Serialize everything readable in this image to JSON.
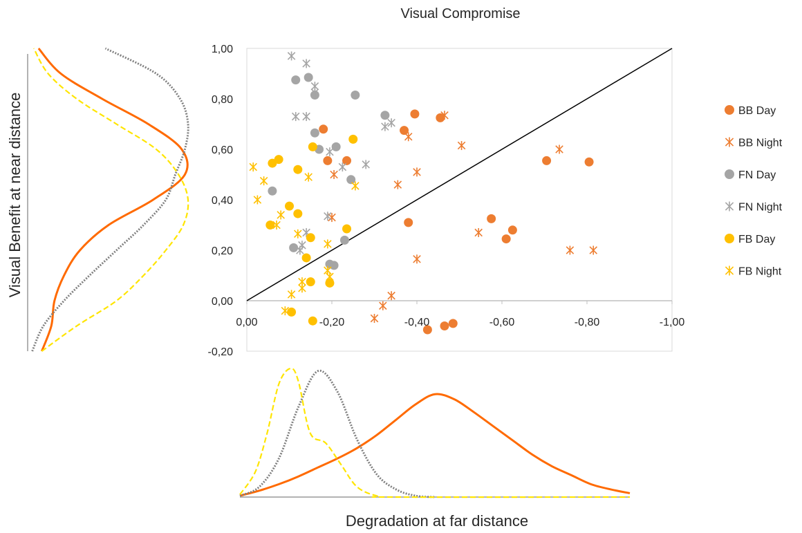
{
  "chart_data": {
    "type": "scatter",
    "title": "Visual Compromise",
    "xlabel": "Degradation at far distance",
    "ylabel": "Visual Benefit at near distance",
    "xlim": [
      0,
      -1
    ],
    "ylim": [
      -0.2,
      1
    ],
    "x_ticks": [
      0,
      -0.2,
      -0.4,
      -0.6,
      -0.8,
      -1
    ],
    "y_ticks": [
      -0.2,
      0,
      0.2,
      0.4,
      0.6,
      0.8,
      1
    ],
    "x_tick_labels": [
      "0,00",
      "-0,20",
      "-0,40",
      "-0,60",
      "-0,80",
      "-1,00"
    ],
    "y_tick_labels": [
      "-0,20",
      "0,00",
      "0,20",
      "0,40",
      "0,60",
      "0,80",
      "1,00"
    ],
    "reference_line": {
      "from": [
        0,
        0
      ],
      "to": [
        -1,
        1
      ],
      "color": "#000000"
    },
    "legend_position": "right",
    "series": [
      {
        "name": "BB Day",
        "marker": "circle",
        "color": "#ED7D31",
        "points": [
          [
            -0.18,
            0.68
          ],
          [
            -0.19,
            0.555
          ],
          [
            -0.235,
            0.555
          ],
          [
            -0.37,
            0.675
          ],
          [
            -0.395,
            0.74
          ],
          [
            -0.455,
            0.725
          ],
          [
            -0.38,
            0.31
          ],
          [
            -0.575,
            0.325
          ],
          [
            -0.61,
            0.245
          ],
          [
            -0.625,
            0.28
          ],
          [
            -0.705,
            0.555
          ],
          [
            -0.805,
            0.55
          ],
          [
            -0.425,
            -0.115
          ],
          [
            -0.465,
            -0.1
          ],
          [
            -0.485,
            -0.09
          ]
        ]
      },
      {
        "name": "BB Night",
        "marker": "asterisk",
        "color": "#ED7D31",
        "points": [
          [
            -0.465,
            0.735
          ],
          [
            -0.38,
            0.65
          ],
          [
            -0.505,
            0.615
          ],
          [
            -0.735,
            0.6
          ],
          [
            -0.4,
            0.51
          ],
          [
            -0.355,
            0.46
          ],
          [
            -0.205,
            0.5
          ],
          [
            -0.2,
            0.33
          ],
          [
            -0.545,
            0.27
          ],
          [
            -0.4,
            0.165
          ],
          [
            -0.76,
            0.2
          ],
          [
            -0.815,
            0.2
          ],
          [
            -0.34,
            0.02
          ],
          [
            -0.32,
            -0.02
          ],
          [
            -0.3,
            -0.07
          ]
        ]
      },
      {
        "name": "FN Day",
        "marker": "circle",
        "color": "#A5A5A5",
        "points": [
          [
            -0.115,
            0.875
          ],
          [
            -0.145,
            0.885
          ],
          [
            -0.16,
            0.815
          ],
          [
            -0.255,
            0.815
          ],
          [
            -0.16,
            0.665
          ],
          [
            -0.17,
            0.6
          ],
          [
            -0.21,
            0.61
          ],
          [
            -0.325,
            0.735
          ],
          [
            -0.245,
            0.48
          ],
          [
            -0.06,
            0.435
          ],
          [
            -0.11,
            0.21
          ],
          [
            -0.23,
            0.24
          ],
          [
            -0.195,
            0.145
          ],
          [
            -0.205,
            0.14
          ]
        ]
      },
      {
        "name": "FN Night",
        "marker": "asterisk",
        "color": "#A5A5A5",
        "points": [
          [
            -0.105,
            0.97
          ],
          [
            -0.14,
            0.94
          ],
          [
            -0.16,
            0.85
          ],
          [
            -0.16,
            0.825
          ],
          [
            -0.115,
            0.73
          ],
          [
            -0.14,
            0.73
          ],
          [
            -0.195,
            0.59
          ],
          [
            -0.225,
            0.53
          ],
          [
            -0.28,
            0.54
          ],
          [
            -0.325,
            0.69
          ],
          [
            -0.34,
            0.705
          ],
          [
            -0.14,
            0.27
          ],
          [
            -0.13,
            0.22
          ],
          [
            -0.125,
            0.2
          ],
          [
            -0.19,
            0.335
          ]
        ]
      },
      {
        "name": "FB Day",
        "marker": "circle",
        "color": "#FFC000",
        "points": [
          [
            -0.155,
            0.61
          ],
          [
            -0.25,
            0.64
          ],
          [
            -0.06,
            0.545
          ],
          [
            -0.075,
            0.56
          ],
          [
            -0.12,
            0.52
          ],
          [
            -0.1,
            0.375
          ],
          [
            -0.12,
            0.345
          ],
          [
            -0.055,
            0.3
          ],
          [
            -0.15,
            0.25
          ],
          [
            -0.235,
            0.285
          ],
          [
            -0.14,
            0.17
          ],
          [
            -0.15,
            0.075
          ],
          [
            -0.195,
            0.07
          ],
          [
            -0.105,
            -0.045
          ],
          [
            -0.155,
            -0.08
          ]
        ]
      },
      {
        "name": "FB Night",
        "marker": "asterisk",
        "color": "#FFC000",
        "points": [
          [
            -0.015,
            0.53
          ],
          [
            -0.04,
            0.475
          ],
          [
            -0.025,
            0.4
          ],
          [
            -0.08,
            0.34
          ],
          [
            -0.07,
            0.3
          ],
          [
            -0.145,
            0.49
          ],
          [
            -0.255,
            0.455
          ],
          [
            -0.19,
            0.225
          ],
          [
            -0.12,
            0.265
          ],
          [
            -0.13,
            0.075
          ],
          [
            -0.13,
            0.05
          ],
          [
            -0.105,
            0.025
          ],
          [
            -0.19,
            0.12
          ],
          [
            -0.195,
            0.095
          ],
          [
            -0.09,
            -0.04
          ]
        ]
      }
    ],
    "marginal_density_far": [
      {
        "color": "#FF6A00",
        "style": "solid",
        "x": [
          0,
          -0.05,
          -0.1,
          -0.15,
          -0.2,
          -0.25,
          -0.3,
          -0.35,
          -0.4,
          -0.45,
          -0.5,
          -0.55,
          -0.6,
          -0.65,
          -0.7,
          -0.75,
          -0.8,
          -0.85,
          -0.9,
          -0.95,
          -1
        ],
        "y": [
          0.01,
          0.05,
          0.1,
          0.16,
          0.23,
          0.3,
          0.38,
          0.48,
          0.6,
          0.72,
          0.8,
          0.76,
          0.66,
          0.55,
          0.44,
          0.33,
          0.24,
          0.17,
          0.1,
          0.06,
          0.03
        ]
      },
      {
        "color": "#808080",
        "style": "dotted",
        "x": [
          0,
          -0.05,
          -0.1,
          -0.15,
          -0.2,
          -0.25,
          -0.3,
          -0.35,
          -0.4,
          -0.45,
          -0.5
        ],
        "y": [
          0.01,
          0.08,
          0.3,
          0.7,
          0.98,
          0.82,
          0.45,
          0.18,
          0.06,
          0.01,
          0
        ]
      },
      {
        "color": "#FFE500",
        "style": "dashed",
        "x": [
          0,
          -0.04,
          -0.07,
          -0.1,
          -0.13,
          -0.15,
          -0.18,
          -0.22,
          -0.26,
          -0.3,
          -0.35,
          -0.4,
          -1
        ],
        "y": [
          0.02,
          0.2,
          0.5,
          0.88,
          1.0,
          0.9,
          0.5,
          0.42,
          0.25,
          0.08,
          0.01,
          0,
          0
        ]
      }
    ],
    "marginal_density_near": [
      {
        "color": "#FF6A00",
        "style": "solid",
        "y": [
          -0.2,
          -0.1,
          0,
          0.1,
          0.2,
          0.3,
          0.4,
          0.5,
          0.6,
          0.7,
          0.8,
          0.9,
          1
        ],
        "v": [
          0.08,
          0.14,
          0.16,
          0.22,
          0.32,
          0.5,
          0.78,
          0.98,
          0.96,
          0.75,
          0.46,
          0.2,
          0.06
        ]
      },
      {
        "color": "#808080",
        "style": "dotted",
        "y": [
          -0.2,
          -0.1,
          0,
          0.1,
          0.2,
          0.3,
          0.4,
          0.5,
          0.6,
          0.7,
          0.8,
          0.9,
          1
        ],
        "v": [
          0.02,
          0.09,
          0.22,
          0.38,
          0.55,
          0.72,
          0.86,
          0.92,
          0.98,
          1.0,
          0.95,
          0.8,
          0.48
        ]
      },
      {
        "color": "#FFE500",
        "style": "dashed",
        "y": [
          -0.2,
          -0.1,
          0,
          0.1,
          0.2,
          0.3,
          0.4,
          0.5,
          0.6,
          0.7,
          0.8,
          0.9,
          1
        ],
        "v": [
          0.08,
          0.3,
          0.55,
          0.72,
          0.86,
          0.97,
          1.0,
          0.94,
          0.8,
          0.55,
          0.3,
          0.12,
          0.03
        ]
      }
    ]
  }
}
